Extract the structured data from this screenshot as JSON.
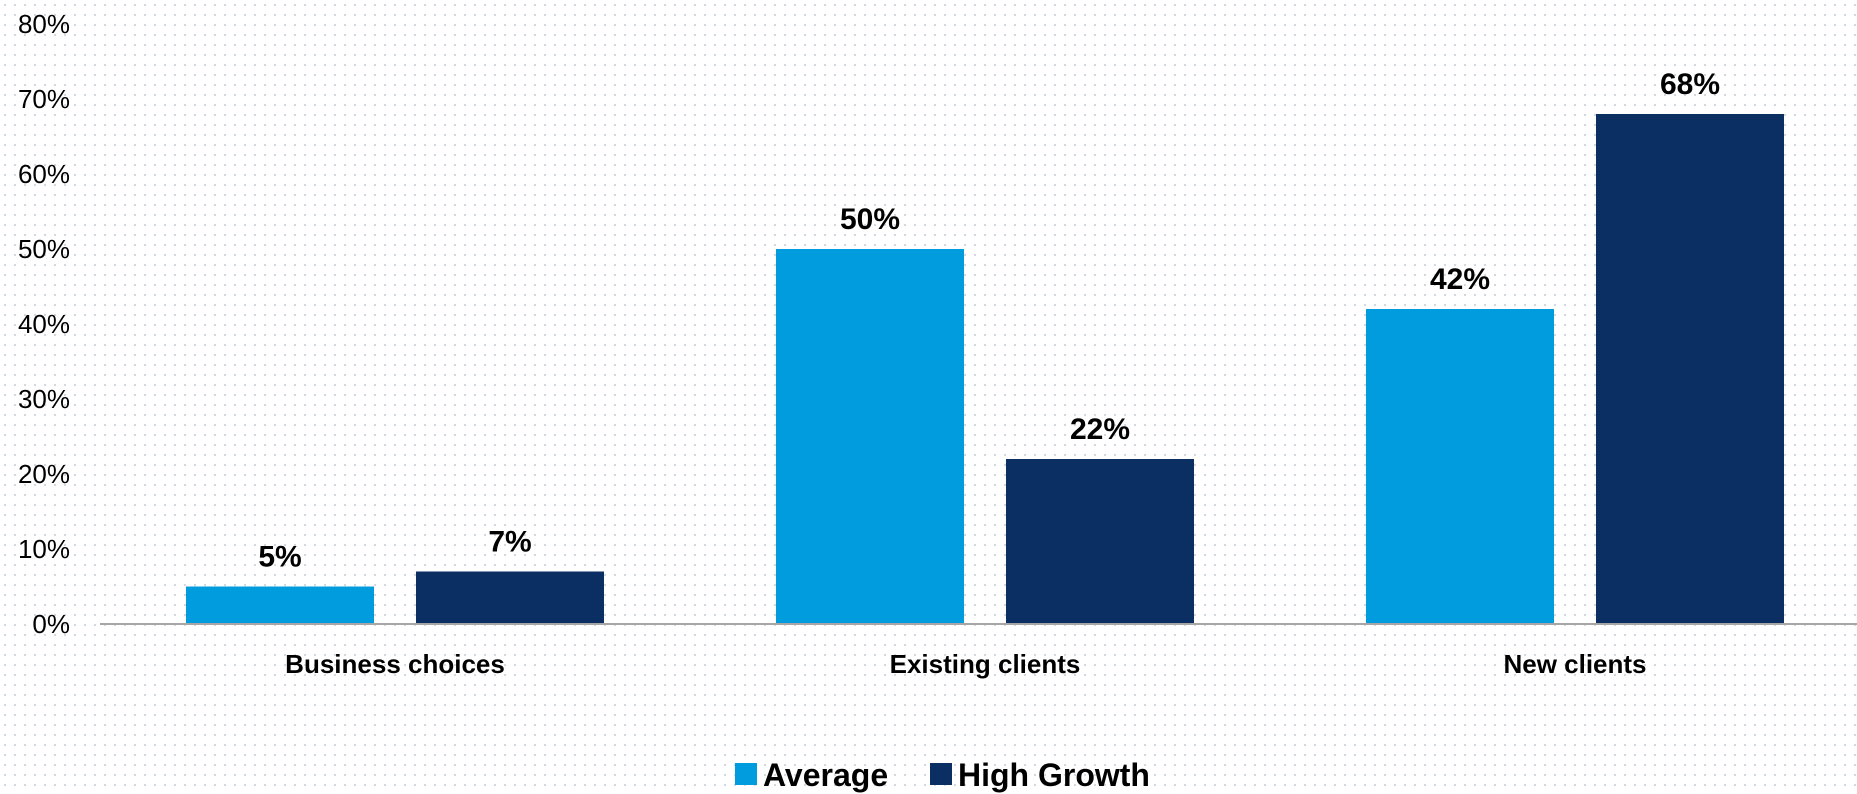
{
  "chart_data": {
    "type": "bar",
    "categories": [
      "Business choices",
      "Existing clients",
      "New clients"
    ],
    "series": [
      {
        "name": "Average",
        "values": [
          5,
          50,
          42
        ],
        "color": "#009cde"
      },
      {
        "name": "High Growth",
        "values": [
          7,
          22,
          68
        ],
        "color": "#0b2f63"
      }
    ],
    "data_labels": [
      [
        "5%",
        "50%",
        "42%"
      ],
      [
        "7%",
        "22%",
        "68%"
      ]
    ],
    "y_ticks": [
      "0%",
      "10%",
      "20%",
      "30%",
      "40%",
      "50%",
      "60%",
      "70%",
      "80%"
    ],
    "ylim": [
      0,
      80
    ],
    "title": "",
    "xlabel": "",
    "ylabel": "",
    "grid": false,
    "legend_position": "bottom-center",
    "axis_color": "#a6a6a6"
  }
}
